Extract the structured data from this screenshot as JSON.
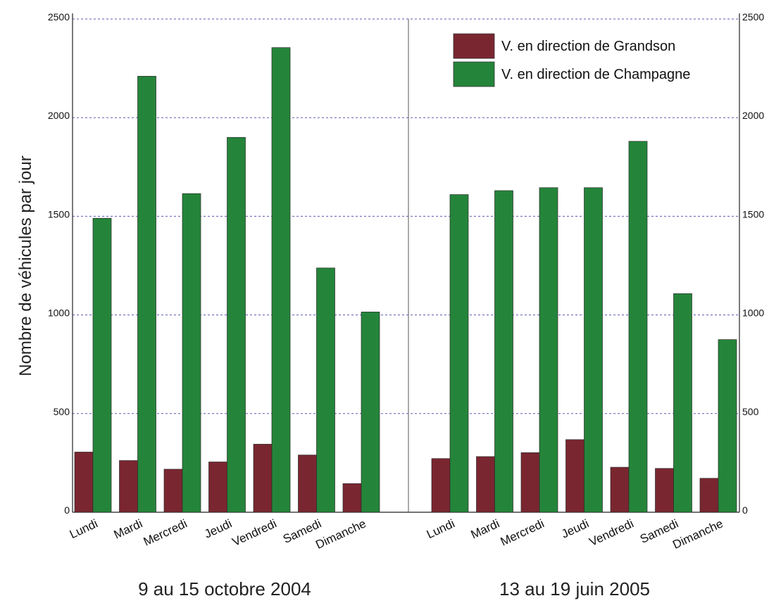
{
  "chart_data": {
    "type": "bar",
    "ylabel": "Nombre de véhicules par jour",
    "ylim": [
      0,
      2500
    ],
    "yticks": [
      0,
      500,
      1000,
      1500,
      2000,
      2500
    ],
    "grid": true,
    "legend_position": "top-right",
    "colors": {
      "grandson": "#7a2630",
      "champagne": "#24853a",
      "grid": "#5a5ab4",
      "axis": "#555555"
    },
    "series_names": [
      "V. en direction de Grandson",
      "V. en direction de Champagne"
    ],
    "groups": [
      {
        "period": "9 au 15 octobre 2004",
        "categories": [
          "Lundi",
          "Mardi",
          "Mercredi",
          "Jeudi",
          "Vendredi",
          "Samedi",
          "Dimanche"
        ],
        "series": [
          {
            "name": "V. en direction de Grandson",
            "values": [
              305,
              262,
              218,
              255,
              345,
              290,
              145
            ]
          },
          {
            "name": "V. en direction de Champagne",
            "values": [
              1490,
              2210,
              1615,
              1900,
              2355,
              1238,
              1015
            ]
          }
        ]
      },
      {
        "period": "13 au 19 juin 2005",
        "categories": [
          "Lundi",
          "Mardi",
          "Mercredi",
          "Jeudi",
          "Vendredi",
          "Samedi",
          "Dimanche"
        ],
        "series": [
          {
            "name": "V. en direction de Grandson",
            "values": [
              272,
              282,
              302,
              368,
              228,
              222,
              172
            ]
          },
          {
            "name": "V. en direction de Champagne",
            "values": [
              1610,
              1630,
              1645,
              1645,
              1880,
              1108,
              875
            ]
          }
        ]
      }
    ]
  }
}
